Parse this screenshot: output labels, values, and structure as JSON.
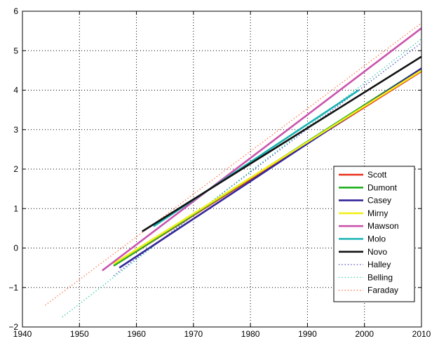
{
  "chart_data": {
    "type": "line",
    "title": "",
    "xlabel": "",
    "ylabel": "",
    "xlim": [
      1940,
      2010
    ],
    "ylim": [
      -2,
      6
    ],
    "xticks": [
      1940,
      1950,
      1960,
      1970,
      1980,
      1990,
      2000,
      2010
    ],
    "yticks": [
      -2,
      -1,
      0,
      1,
      2,
      3,
      4,
      5,
      6
    ],
    "grid": true,
    "legend_position": "lower-right",
    "series": [
      {
        "name": "Scott",
        "color": "#e8301c",
        "style": "solid",
        "x": [
          1956,
          2010
        ],
        "y": [
          -0.45,
          4.48
        ]
      },
      {
        "name": "Dumont",
        "color": "#22b022",
        "style": "solid",
        "x": [
          1956,
          2010
        ],
        "y": [
          -0.45,
          4.55
        ]
      },
      {
        "name": "Casey",
        "color": "#33279a",
        "style": "solid",
        "x": [
          1957,
          2010
        ],
        "y": [
          -0.5,
          4.55
        ]
      },
      {
        "name": "Mirny",
        "color": "#f2ef1a",
        "style": "solid",
        "x": [
          1956,
          2010
        ],
        "y": [
          -0.4,
          4.5
        ]
      },
      {
        "name": "Mawson",
        "color": "#c954ad",
        "style": "solid",
        "x": [
          1954,
          2010
        ],
        "y": [
          -0.57,
          5.57
        ]
      },
      {
        "name": "Molo",
        "color": "#18b3b3",
        "style": "solid",
        "x": [
          1963,
          1999
        ],
        "y": [
          0.55,
          4.0
        ]
      },
      {
        "name": "Novo",
        "color": "#111111",
        "style": "solid",
        "x": [
          1961,
          2010
        ],
        "y": [
          0.42,
          4.85
        ]
      },
      {
        "name": "Halley",
        "color": "#3a3ab5",
        "style": "dotted",
        "x": [
          1956,
          2010
        ],
        "y": [
          -0.7,
          5.2
        ]
      },
      {
        "name": "Belling",
        "color": "#27c9a9",
        "style": "dotted",
        "x": [
          1947,
          2010
        ],
        "y": [
          -1.75,
          5.3
        ]
      },
      {
        "name": "Faraday",
        "color": "#ff6a3a",
        "style": "dotted",
        "x": [
          1944,
          2010
        ],
        "y": [
          -1.45,
          5.7
        ]
      }
    ]
  }
}
